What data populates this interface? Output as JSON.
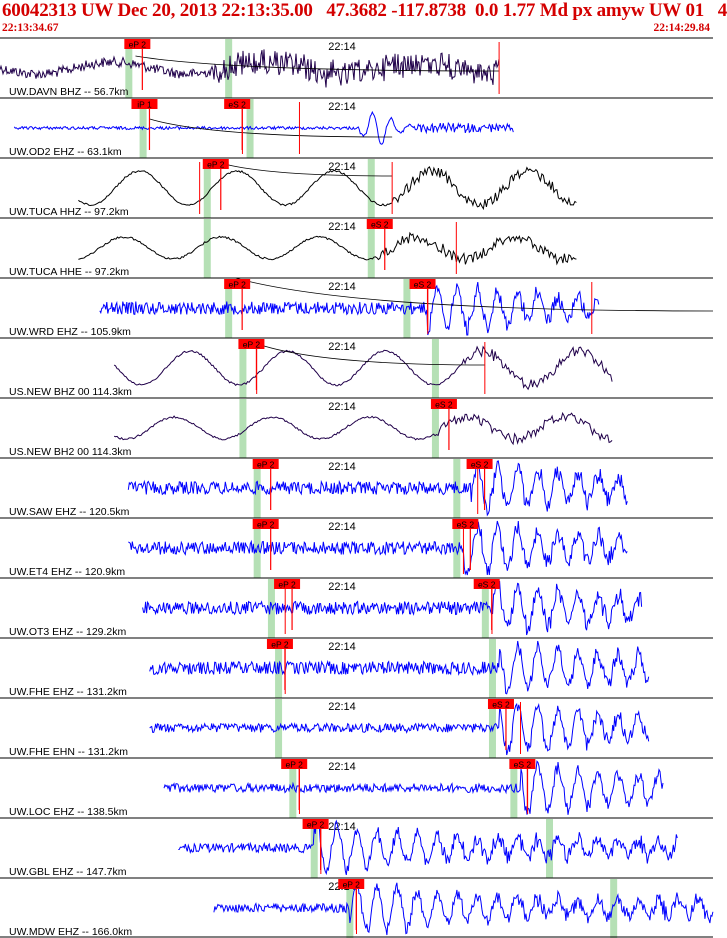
{
  "header": {
    "title": "60042313 UW Dec 20, 2013 22:13:35.00   47.3682 -117.8738  0.0 1.77 Md px amyw UW 01   4",
    "start_time": "22:13:34.67",
    "end_time": "22:14:29.84"
  },
  "colors": {
    "header_text": "#d40000",
    "pick_box": "#ff0000",
    "trace_blue": "#0000ff",
    "trace_black": "#000000",
    "trace_purple": "#20004a",
    "pick_window": "#b5e0b5",
    "pick_line": "#ff0000",
    "theoretical_curve": "#000000",
    "panel_border": "#000000"
  },
  "chart_data": {
    "type": "seismogram",
    "time_start": "22:13:34.67",
    "time_end": "22:14:29.84",
    "minute_marker_label": "22:14",
    "traces": [
      {
        "label": "UW.DAVN BHZ -- 56.7km",
        "color": "purple",
        "character": "low_freq_noisy",
        "trace_start": 0.0,
        "trace_end": 0.7,
        "picks": [
          {
            "label": "eP 2",
            "t": 0.18
          }
        ],
        "green_windows": [
          0.18,
          0.32
        ],
        "extra_pick_lines": [
          0.7
        ],
        "arrival_curve": {
          "from": 0.19,
          "to": 0.7,
          "start_level": 0.3,
          "end_level": 0.55
        }
      },
      {
        "label": "UW.OD2 EHZ -- 63.1km",
        "color": "blue",
        "character": "quiet_then_burst",
        "trace_start": 0.02,
        "trace_end": 0.72,
        "burst_at": 0.53,
        "picks": [
          {
            "label": "iP 1",
            "t": 0.19
          },
          {
            "label": "eS 2",
            "t": 0.32
          }
        ],
        "green_windows": [
          0.2,
          0.35
        ],
        "extra_pick_lines": [
          0.34,
          0.42
        ],
        "arrival_curve": {
          "from": 0.21,
          "to": 0.55,
          "start_level": 0.35,
          "end_level": 0.65
        }
      },
      {
        "label": "UW.TUCA HHZ -- 97.2km",
        "color": "black",
        "character": "long_period",
        "trace_start": 0.11,
        "trace_end": 0.81,
        "burst_at": 0.55,
        "picks": [
          {
            "label": "eP 2",
            "t": 0.29
          }
        ],
        "green_windows": [
          0.29,
          0.52
        ],
        "extra_pick_lines": [
          0.28,
          0.55
        ],
        "arrival_curve": {
          "from": 0.3,
          "to": 0.55,
          "start_level": 0.05,
          "end_level": 0.3
        }
      },
      {
        "label": "UW.TUCA HHE -- 97.2km",
        "color": "black",
        "character": "long_period_low",
        "trace_start": 0.11,
        "trace_end": 0.81,
        "burst_at": 0.53,
        "picks": [
          {
            "label": "eS 2",
            "t": 0.52
          }
        ],
        "green_windows": [
          0.29,
          0.52
        ],
        "extra_pick_lines": [
          0.64
        ]
      },
      {
        "label": "UW.WRD EHZ -- 105.9km",
        "color": "blue",
        "character": "noisy",
        "trace_start": 0.14,
        "trace_end": 0.84,
        "burst_at": 0.6,
        "picks": [
          {
            "label": "eP 2",
            "t": 0.32
          },
          {
            "label": "eS 2",
            "t": 0.58
          }
        ],
        "green_windows": [
          0.32,
          0.57
        ],
        "extra_pick_lines": [
          0.6,
          0.83
        ],
        "arrival_curve": {
          "from": 0.33,
          "to": 1.0,
          "start_level": 0.0,
          "end_level": 0.55
        }
      },
      {
        "label": "US.NEW BHZ 00 114.3km",
        "color": "purple",
        "character": "long_period",
        "trace_start": 0.16,
        "trace_end": 0.86,
        "burst_at": 0.65,
        "picks": [
          {
            "label": "eP 2",
            "t": 0.34
          }
        ],
        "green_windows": [
          0.34,
          0.61
        ],
        "extra_pick_lines": [
          0.36,
          0.68
        ],
        "arrival_curve": {
          "from": 0.35,
          "to": 0.68,
          "start_level": 0.05,
          "end_level": 0.45
        }
      },
      {
        "label": "US.NEW BH2 00 114.3km",
        "color": "purple",
        "character": "long_period_low",
        "trace_start": 0.16,
        "trace_end": 0.86,
        "burst_at": 0.61,
        "picks": [
          {
            "label": "eS 2",
            "t": 0.61
          }
        ],
        "green_windows": [
          0.34,
          0.61
        ],
        "extra_pick_lines": []
      },
      {
        "label": "UW.SAW EHZ -- 120.5km",
        "color": "blue",
        "character": "noisy",
        "trace_start": 0.18,
        "trace_end": 0.88,
        "burst_at": 0.66,
        "picks": [
          {
            "label": "eP 2",
            "t": 0.36
          },
          {
            "label": "eS 2",
            "t": 0.66
          }
        ],
        "green_windows": [
          0.36,
          0.64
        ],
        "extra_pick_lines": [
          0.67
        ]
      },
      {
        "label": "UW.ET4 EHZ -- 120.9km",
        "color": "blue",
        "character": "noisy",
        "trace_start": 0.18,
        "trace_end": 0.88,
        "burst_at": 0.65,
        "picks": [
          {
            "label": "eP 2",
            "t": 0.36
          },
          {
            "label": "eS 2",
            "t": 0.64
          }
        ],
        "green_windows": [
          0.36,
          0.64
        ],
        "extra_pick_lines": [
          0.65
        ]
      },
      {
        "label": "UW.OT3 EHZ -- 129.2km",
        "color": "blue",
        "character": "noisy",
        "trace_start": 0.2,
        "trace_end": 0.9,
        "burst_at": 0.69,
        "picks": [
          {
            "label": "eP 2",
            "t": 0.39
          },
          {
            "label": "eS 2",
            "t": 0.67
          }
        ],
        "green_windows": [
          0.38,
          0.68
        ],
        "extra_pick_lines": [
          0.4,
          0.69
        ]
      },
      {
        "label": "UW.FHE EHZ -- 131.2km",
        "color": "blue",
        "character": "noisy",
        "trace_start": 0.21,
        "trace_end": 0.91,
        "burst_at": 0.7,
        "picks": [
          {
            "label": "eP 2",
            "t": 0.38
          }
        ],
        "green_windows": [
          0.39,
          0.69
        ],
        "extra_pick_lines": [
          0.4
        ]
      },
      {
        "label": "UW.FHE EHN -- 131.2km",
        "color": "blue",
        "character": "noisy_low",
        "trace_start": 0.21,
        "trace_end": 0.91,
        "burst_at": 0.7,
        "picks": [
          {
            "label": "eS 2",
            "t": 0.69
          }
        ],
        "green_windows": [
          0.39,
          0.69
        ],
        "extra_pick_lines": [
          0.73
        ]
      },
      {
        "label": "UW.LOC EHZ -- 138.5km",
        "color": "blue",
        "character": "noisy_low",
        "trace_start": 0.23,
        "trace_end": 0.93,
        "burst_at": 0.73,
        "picks": [
          {
            "label": "eP 2",
            "t": 0.4
          },
          {
            "label": "eS 2",
            "t": 0.72
          }
        ],
        "green_windows": [
          0.41,
          0.72
        ],
        "extra_pick_lines": [
          0.42,
          0.74
        ]
      },
      {
        "label": "UW.GBL EHZ -- 147.7km",
        "color": "blue",
        "character": "noisy_low",
        "trace_start": 0.25,
        "trace_end": 0.95,
        "burst_at": 0.44,
        "picks": [
          {
            "label": "eP 2",
            "t": 0.43
          }
        ],
        "green_windows": [
          0.44,
          0.77
        ],
        "extra_pick_lines": [
          0.45
        ]
      },
      {
        "label": "UW.MDW EHZ -- 166.0km",
        "color": "blue",
        "character": "noisy_low",
        "trace_start": 0.3,
        "trace_end": 1.0,
        "burst_at": 0.49,
        "picks": [
          {
            "label": "eP 2",
            "t": 0.48
          }
        ],
        "green_windows": [
          0.49,
          0.86
        ],
        "extra_pick_lines": [
          0.5
        ]
      }
    ]
  }
}
